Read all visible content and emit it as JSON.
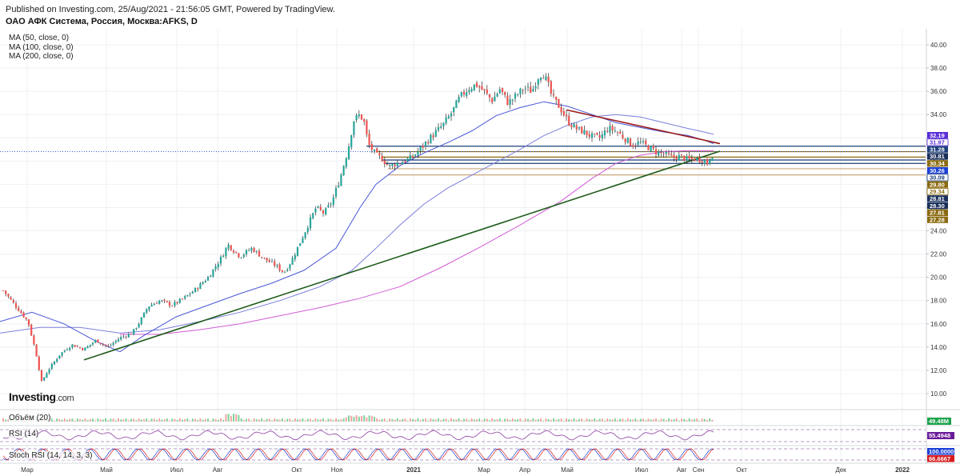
{
  "header": {
    "published": "Published on Investing.com, 25/Aug/2021 - 21:56:05 GMT, Powered by TradingView.",
    "symbol": "ОАО АФК Система, Россия, Москва:AFKS, D"
  },
  "indicators_legend": [
    "MA (50, close, 0)",
    "MA (100, close, 0)",
    "MA (200, close, 0)"
  ],
  "logo": {
    "main": "Investing",
    "suffix": ".com"
  },
  "panels": {
    "volume": {
      "label": "Объём (20)",
      "value_label": "49.48M",
      "color": "#1aa34a"
    },
    "rsi": {
      "label": "RSI (14)",
      "value_label": "55.4948",
      "color": "#6a1b9a"
    },
    "stoch": {
      "label": "Stoch RSI (14, 14, 3, 3)",
      "value_labels": [
        "100.0000",
        "66.6667"
      ],
      "colors": [
        "#1a3fd6",
        "#d81b1b"
      ]
    }
  },
  "chart_data": {
    "type": "candlestick",
    "title": "ОАО АФК Система, Россия, Москва:AFKS, D",
    "xlabel": "",
    "ylabel": "",
    "ylim": [
      9.0,
      41.0
    ],
    "y_ticks": [
      "10.00",
      "12.00",
      "14.00",
      "16.00",
      "18.00",
      "20.00",
      "22.00",
      "24.00",
      "26.00",
      "28.00",
      "30.00",
      "32.00",
      "34.00",
      "36.00",
      "38.00",
      "40.00"
    ],
    "x_ticks": [
      "Мар",
      "Май",
      "Июл",
      "Авг",
      "Окт",
      "Ноя",
      "2021",
      "Мар",
      "Апр",
      "Май",
      "Июл",
      "Авг",
      "Сен",
      "Окт",
      "Дек",
      "2022"
    ],
    "price_path": [
      [
        0,
        19.2
      ],
      [
        20,
        17.5
      ],
      [
        35,
        16.2
      ],
      [
        45,
        13.5
      ],
      [
        52,
        11.0
      ],
      [
        60,
        12.0
      ],
      [
        75,
        13.4
      ],
      [
        90,
        14.2
      ],
      [
        105,
        13.8
      ],
      [
        120,
        14.6
      ],
      [
        135,
        14.0
      ],
      [
        150,
        14.8
      ],
      [
        165,
        15.2
      ],
      [
        175,
        16.2
      ],
      [
        185,
        17.5
      ],
      [
        200,
        18.0
      ],
      [
        215,
        17.6
      ],
      [
        230,
        18.2
      ],
      [
        245,
        19.0
      ],
      [
        260,
        20.0
      ],
      [
        275,
        21.5
      ],
      [
        285,
        22.8
      ],
      [
        300,
        21.8
      ],
      [
        315,
        22.5
      ],
      [
        330,
        21.6
      ],
      [
        345,
        21.0
      ],
      [
        355,
        20.4
      ],
      [
        365,
        21.5
      ],
      [
        375,
        23.0
      ],
      [
        385,
        24.5
      ],
      [
        395,
        26.0
      ],
      [
        405,
        25.5
      ],
      [
        415,
        26.5
      ],
      [
        425,
        28.5
      ],
      [
        435,
        31.0
      ],
      [
        442,
        33.5
      ],
      [
        450,
        34.0
      ],
      [
        456,
        33.2
      ],
      [
        460,
        31.5
      ],
      [
        465,
        31.0
      ],
      [
        470,
        30.5
      ],
      [
        478,
        30.2
      ],
      [
        486,
        29.5
      ],
      [
        495,
        29.8
      ],
      [
        505,
        30.0
      ],
      [
        515,
        30.3
      ],
      [
        525,
        31.0
      ],
      [
        535,
        31.8
      ],
      [
        545,
        32.5
      ],
      [
        555,
        33.2
      ],
      [
        565,
        34.2
      ],
      [
        575,
        35.5
      ],
      [
        585,
        36.2
      ],
      [
        595,
        36.6
      ],
      [
        605,
        36.0
      ],
      [
        615,
        35.2
      ],
      [
        625,
        36.2
      ],
      [
        635,
        35.0
      ],
      [
        645,
        35.6
      ],
      [
        655,
        36.3
      ],
      [
        665,
        36.0
      ],
      [
        672,
        37.2
      ],
      [
        678,
        37.6
      ],
      [
        684,
        36.8
      ],
      [
        690,
        35.5
      ],
      [
        700,
        34.6
      ],
      [
        710,
        33.4
      ],
      [
        720,
        32.8
      ],
      [
        730,
        32.5
      ],
      [
        740,
        32.1
      ],
      [
        750,
        32.0
      ],
      [
        760,
        32.8
      ],
      [
        770,
        32.6
      ],
      [
        780,
        32.0
      ],
      [
        790,
        31.4
      ],
      [
        800,
        31.6
      ],
      [
        810,
        31.2
      ],
      [
        820,
        30.8
      ],
      [
        830,
        30.6
      ],
      [
        840,
        30.3
      ],
      [
        850,
        30.4
      ],
      [
        860,
        30.1
      ],
      [
        870,
        30.2
      ],
      [
        880,
        30.1
      ],
      [
        884,
        29.8
      ],
      [
        888,
        30.4
      ],
      [
        892,
        30.7
      ]
    ],
    "ma50_path": [
      [
        0,
        16.2
      ],
      [
        40,
        17.0
      ],
      [
        80,
        16.0
      ],
      [
        120,
        14.5
      ],
      [
        150,
        13.6
      ],
      [
        180,
        15.0
      ],
      [
        220,
        16.6
      ],
      [
        260,
        17.6
      ],
      [
        300,
        18.6
      ],
      [
        340,
        19.5
      ],
      [
        380,
        20.6
      ],
      [
        420,
        22.5
      ],
      [
        450,
        26.0
      ],
      [
        470,
        28.0
      ],
      [
        500,
        29.6
      ],
      [
        530,
        30.7
      ],
      [
        560,
        31.6
      ],
      [
        590,
        32.6
      ],
      [
        620,
        33.9
      ],
      [
        650,
        34.6
      ],
      [
        680,
        35.1
      ],
      [
        710,
        34.7
      ],
      [
        740,
        34.0
      ],
      [
        770,
        33.3
      ],
      [
        800,
        32.9
      ],
      [
        830,
        32.5
      ],
      [
        860,
        32.2
      ],
      [
        880,
        31.8
      ],
      [
        892,
        31.5
      ]
    ],
    "ma100_path": [
      [
        0,
        15.2
      ],
      [
        50,
        15.7
      ],
      [
        100,
        15.7
      ],
      [
        150,
        15.2
      ],
      [
        200,
        15.5
      ],
      [
        250,
        16.2
      ],
      [
        300,
        17.0
      ],
      [
        350,
        18.0
      ],
      [
        400,
        19.2
      ],
      [
        440,
        20.6
      ],
      [
        470,
        22.5
      ],
      [
        500,
        24.5
      ],
      [
        530,
        26.3
      ],
      [
        560,
        27.7
      ],
      [
        590,
        28.8
      ],
      [
        620,
        29.9
      ],
      [
        650,
        31.0
      ],
      [
        680,
        32.2
      ],
      [
        710,
        33.1
      ],
      [
        740,
        33.8
      ],
      [
        770,
        34.0
      ],
      [
        800,
        33.8
      ],
      [
        830,
        33.3
      ],
      [
        860,
        32.8
      ],
      [
        880,
        32.5
      ],
      [
        892,
        32.3
      ]
    ],
    "ma200_path": [
      [
        150,
        15.1
      ],
      [
        200,
        15.1
      ],
      [
        250,
        15.5
      ],
      [
        300,
        16.0
      ],
      [
        350,
        16.7
      ],
      [
        400,
        17.4
      ],
      [
        450,
        18.2
      ],
      [
        500,
        19.2
      ],
      [
        550,
        20.8
      ],
      [
        600,
        22.6
      ],
      [
        650,
        24.5
      ],
      [
        700,
        26.5
      ],
      [
        740,
        28.5
      ],
      [
        770,
        29.8
      ],
      [
        800,
        30.5
      ],
      [
        830,
        30.8
      ],
      [
        860,
        30.9
      ],
      [
        880,
        30.9
      ],
      [
        892,
        30.9
      ]
    ],
    "trendlines": [
      {
        "name": "support",
        "color": "#1f5c1a",
        "from": [
          105,
          12.9
        ],
        "to": [
          900,
          30.85
        ]
      },
      {
        "name": "resistance",
        "color": "#9b1b1b",
        "from": [
          708,
          34.4
        ],
        "to": [
          900,
          31.5
        ]
      }
    ],
    "horizontal_levels": [
      {
        "value": 31.28,
        "color": "#1d3f7a",
        "from_x": 458
      },
      {
        "value": 30.81,
        "color": "#8b6b10",
        "from_x": 470
      },
      {
        "value": 30.34,
        "color": "#8b6b10",
        "from_x": 478
      },
      {
        "value": 30.09,
        "color": "#1d3f7a",
        "from_x": 478
      },
      {
        "value": 29.8,
        "color": "#1d3f7a",
        "from_x": 480
      },
      {
        "value": 29.34,
        "color": "#c8a77a",
        "from_x": 485
      },
      {
        "value": 28.81,
        "color": "#c8a77a",
        "from_x": 485
      }
    ],
    "last_price_line": 30.81,
    "price_labels": [
      {
        "text": "32.19",
        "bg": "#5b2dd8",
        "fg": "#ffffff"
      },
      {
        "text": "31.97",
        "bg": "#ffffff",
        "fg": "#5b2dd8",
        "border": "#5b2dd8"
      },
      {
        "text": "31.28",
        "bg": "#1d3f7a",
        "fg": "#ffffff"
      },
      {
        "text": "30.81",
        "bg": "#1a2f5a",
        "fg": "#ffffff"
      },
      {
        "text": "30.34",
        "bg": "#8b6b10",
        "fg": "#ffffff"
      },
      {
        "text": "30.26",
        "bg": "#1a3fd6",
        "fg": "#ffffff"
      },
      {
        "text": "30.09",
        "bg": "#ffffff",
        "fg": "#1d3f7a",
        "border": "#1d3f7a"
      },
      {
        "text": "29.80",
        "bg": "#8b6b10",
        "fg": "#ffffff"
      },
      {
        "text": "29.34",
        "bg": "#ffffff",
        "fg": "#8b6b10",
        "border": "#8b6b10"
      },
      {
        "text": "28.81",
        "bg": "#1a2f5a",
        "fg": "#ffffff"
      },
      {
        "text": "28.30",
        "bg": "#1a2f5a",
        "fg": "#ffffff"
      },
      {
        "text": "27.81",
        "bg": "#8b6b10",
        "fg": "#ffffff"
      },
      {
        "text": "27.28",
        "bg": "#8b6b10",
        "fg": "#ffffff"
      }
    ],
    "colors": {
      "up": "#26a69a",
      "down": "#ef5350",
      "wick": "#2a2a2a",
      "ma50": "#4a56d8",
      "ma100": "#7b7fdc",
      "ma200": "#d05ad6",
      "grid": "#eef0f3"
    }
  }
}
